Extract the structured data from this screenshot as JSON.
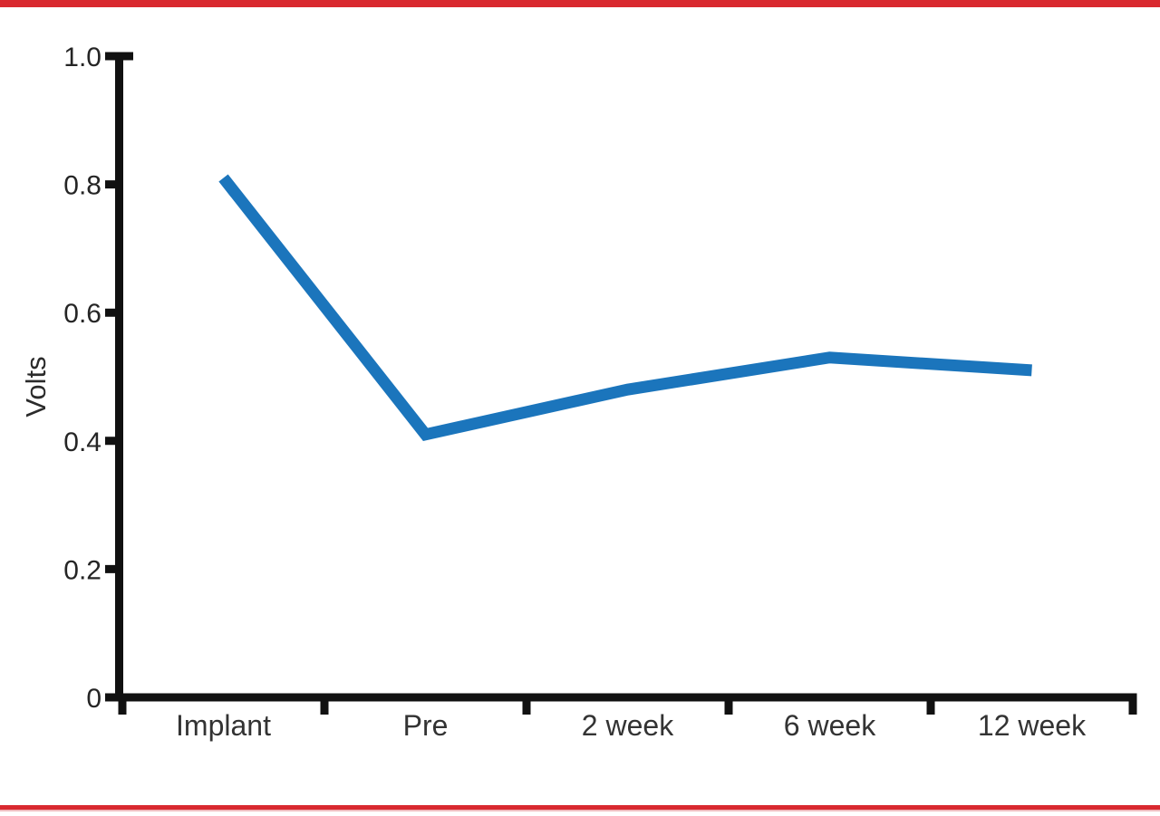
{
  "page": {
    "background": "#ffffff",
    "top_border_color": "#d9292f",
    "bottom_border_color": "#d9292f",
    "bottom_border_accent_color": "#f0bcbf"
  },
  "chart_data": {
    "type": "line",
    "title": "",
    "xlabel": "",
    "ylabel": "Volts",
    "categories": [
      "Implant",
      "Pre",
      "2 week",
      "6 week",
      "12 week"
    ],
    "values": [
      0.81,
      0.41,
      0.48,
      0.53,
      0.51
    ],
    "series_name": "Volts",
    "ylim": [
      0,
      1.0
    ],
    "yticks": [
      0,
      0.2,
      0.4,
      0.6,
      0.8,
      1.0
    ],
    "ytick_labels": [
      "0",
      "0.2",
      "0.4",
      "0.6",
      "0.8",
      "1.0"
    ],
    "grid": false,
    "legend": "none",
    "line_color": "#1b75bc",
    "line_width": 13,
    "axis_color": "#111111"
  }
}
